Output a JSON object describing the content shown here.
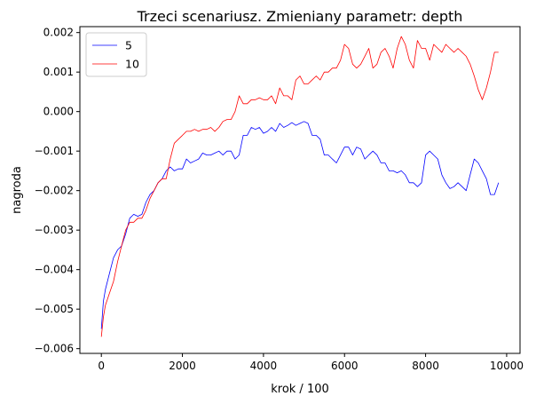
{
  "chart_data": {
    "type": "line",
    "title": "Trzeci scenariusz. Zmieniany parametr: depth",
    "xlabel": "krok / 100",
    "ylabel": "nagroda",
    "xlim": [
      -530,
      10330
    ],
    "ylim": [
      -0.00612,
      0.00215
    ],
    "xticks": [
      0,
      2000,
      4000,
      6000,
      8000,
      10000
    ],
    "xtick_labels": [
      "0",
      "2000",
      "4000",
      "6000",
      "8000",
      "10000"
    ],
    "yticks": [
      -0.006,
      -0.005,
      -0.004,
      -0.003,
      -0.002,
      -0.001,
      0.0,
      0.001,
      0.002
    ],
    "ytick_labels": [
      "−0.006",
      "−0.005",
      "−0.004",
      "−0.003",
      "−0.002",
      "−0.001",
      "0.000",
      "0.001",
      "0.002"
    ],
    "grid": false,
    "legend_position": "top-left",
    "series": [
      {
        "name": "5",
        "color": "#0000ff",
        "x": [
          0,
          50,
          100,
          200,
          300,
          400,
          500,
          600,
          700,
          800,
          900,
          1000,
          1100,
          1200,
          1300,
          1400,
          1500,
          1600,
          1700,
          1800,
          1900,
          2000,
          2100,
          2200,
          2300,
          2400,
          2500,
          2600,
          2700,
          2800,
          2900,
          3000,
          3100,
          3200,
          3300,
          3400,
          3500,
          3600,
          3700,
          3800,
          3900,
          4000,
          4100,
          4200,
          4300,
          4400,
          4500,
          4600,
          4700,
          4800,
          4900,
          5000,
          5100,
          5200,
          5300,
          5400,
          5500,
          5600,
          5700,
          5800,
          5900,
          6000,
          6100,
          6200,
          6300,
          6400,
          6500,
          6600,
          6700,
          6800,
          6900,
          7000,
          7100,
          7200,
          7300,
          7400,
          7500,
          7600,
          7700,
          7800,
          7900,
          8000,
          8100,
          8200,
          8300,
          8400,
          8500,
          8600,
          8700,
          8800,
          8900,
          9000,
          9100,
          9200,
          9300,
          9400,
          9500,
          9600,
          9700,
          9800
        ],
        "y": [
          -0.0055,
          -0.0048,
          -0.0045,
          -0.0041,
          -0.0037,
          -0.0035,
          -0.0034,
          -0.0031,
          -0.0027,
          -0.0026,
          -0.00265,
          -0.0026,
          -0.0023,
          -0.0021,
          -0.002,
          -0.0018,
          -0.0017,
          -0.0015,
          -0.0014,
          -0.0015,
          -0.00145,
          -0.00145,
          -0.0012,
          -0.0013,
          -0.00125,
          -0.0012,
          -0.00105,
          -0.0011,
          -0.0011,
          -0.00105,
          -0.001,
          -0.0011,
          -0.001,
          -0.001,
          -0.0012,
          -0.0011,
          -0.0006,
          -0.0006,
          -0.0004,
          -0.00045,
          -0.0004,
          -0.00055,
          -0.0005,
          -0.0004,
          -0.0005,
          -0.0003,
          -0.0004,
          -0.00035,
          -0.00028,
          -0.00035,
          -0.0003,
          -0.00025,
          -0.0003,
          -0.0006,
          -0.0006,
          -0.0007,
          -0.0011,
          -0.0011,
          -0.0012,
          -0.0013,
          -0.0011,
          -0.0009,
          -0.0009,
          -0.0011,
          -0.0009,
          -0.00095,
          -0.0012,
          -0.0011,
          -0.001,
          -0.0011,
          -0.0013,
          -0.0013,
          -0.0015,
          -0.0015,
          -0.00155,
          -0.0015,
          -0.0016,
          -0.0018,
          -0.0018,
          -0.0019,
          -0.0018,
          -0.0011,
          -0.001,
          -0.0011,
          -0.0012,
          -0.0016,
          -0.0018,
          -0.00195,
          -0.0019,
          -0.0018,
          -0.0019,
          -0.002,
          -0.0016,
          -0.0012,
          -0.0013,
          -0.0015,
          -0.0017,
          -0.0021,
          -0.0021,
          -0.0018
        ]
      },
      {
        "name": "10",
        "color": "#ff0000",
        "x": [
          0,
          50,
          100,
          200,
          300,
          400,
          500,
          600,
          700,
          800,
          900,
          1000,
          1100,
          1200,
          1300,
          1400,
          1500,
          1600,
          1700,
          1800,
          1900,
          2000,
          2100,
          2200,
          2300,
          2400,
          2500,
          2600,
          2700,
          2800,
          2900,
          3000,
          3100,
          3200,
          3300,
          3400,
          3500,
          3600,
          3700,
          3800,
          3900,
          4000,
          4100,
          4200,
          4300,
          4400,
          4500,
          4600,
          4700,
          4800,
          4900,
          5000,
          5100,
          5200,
          5300,
          5400,
          5500,
          5600,
          5700,
          5800,
          5900,
          6000,
          6100,
          6200,
          6300,
          6400,
          6500,
          6600,
          6700,
          6800,
          6900,
          7000,
          7100,
          7200,
          7300,
          7400,
          7500,
          7600,
          7700,
          7800,
          7900,
          8000,
          8100,
          8200,
          8300,
          8400,
          8500,
          8600,
          8700,
          8800,
          8900,
          9000,
          9100,
          9200,
          9300,
          9400,
          9500,
          9600,
          9700,
          9800
        ],
        "y": [
          -0.0057,
          -0.0052,
          -0.0049,
          -0.0046,
          -0.0043,
          -0.0038,
          -0.0034,
          -0.003,
          -0.0028,
          -0.0028,
          -0.0027,
          -0.0027,
          -0.0025,
          -0.0022,
          -0.002,
          -0.0018,
          -0.0017,
          -0.0017,
          -0.0012,
          -0.0008,
          -0.0007,
          -0.0006,
          -0.0005,
          -0.0005,
          -0.00045,
          -0.0005,
          -0.00045,
          -0.00045,
          -0.0004,
          -0.0005,
          -0.0004,
          -0.00025,
          -0.0002,
          -0.0002,
          0.0,
          0.0004,
          0.0002,
          0.0002,
          0.0003,
          0.0003,
          0.00035,
          0.0003,
          0.0003,
          0.0004,
          0.0002,
          0.0006,
          0.0004,
          0.0004,
          0.0003,
          0.0008,
          0.0009,
          0.0007,
          0.0007,
          0.0008,
          0.0009,
          0.0008,
          0.001,
          0.001,
          0.0011,
          0.0011,
          0.0013,
          0.0017,
          0.0016,
          0.0012,
          0.0011,
          0.0012,
          0.0014,
          0.0016,
          0.0011,
          0.0012,
          0.0015,
          0.0016,
          0.0014,
          0.0011,
          0.0016,
          0.0019,
          0.0017,
          0.0013,
          0.0011,
          0.0018,
          0.0016,
          0.0016,
          0.0013,
          0.0017,
          0.0016,
          0.0015,
          0.0017,
          0.0016,
          0.0015,
          0.0016,
          0.0015,
          0.0014,
          0.0012,
          0.0009,
          0.00055,
          0.0003,
          0.0006,
          0.001,
          0.0015,
          0.0015
        ]
      }
    ]
  }
}
